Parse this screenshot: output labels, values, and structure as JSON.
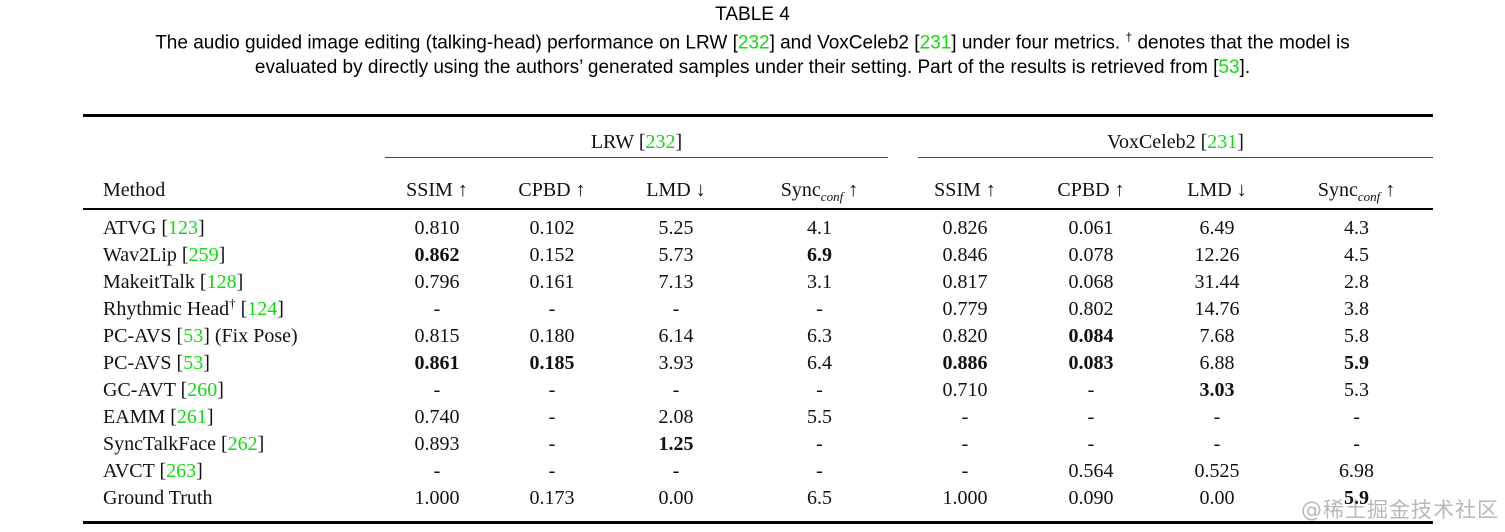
{
  "colors": {
    "green": "#12db12",
    "text": "#111111",
    "rule": "#000000"
  },
  "title": "TABLE 4",
  "caption": {
    "line1": [
      {
        "t": "The audio guided image editing (talking-head) performance on LRW ["
      },
      {
        "t": "232",
        "c": "green"
      },
      {
        "t": "] and VoxCeleb2 ["
      },
      {
        "t": "231",
        "c": "green"
      },
      {
        "t": "] under four metrics. "
      },
      {
        "t": "†",
        "s": "sup"
      },
      {
        "t": " denotes that the model is"
      }
    ],
    "line2": [
      {
        "t": "evaluated by directly using the authors’ generated samples under their setting. Part of the results is retrieved from ["
      },
      {
        "t": "53",
        "c": "green"
      },
      {
        "t": "]."
      }
    ]
  },
  "table": {
    "method_header": "Method",
    "groups": [
      {
        "id": "lrw",
        "label": [
          {
            "t": "LRW ["
          },
          {
            "t": "232",
            "c": "green"
          },
          {
            "t": "]"
          }
        ],
        "columns": [
          {
            "metric": "SSIM",
            "sub": "",
            "arrow": "↑"
          },
          {
            "metric": "CPBD",
            "sub": "",
            "arrow": "↑"
          },
          {
            "metric": "LMD",
            "sub": "",
            "arrow": "↓"
          },
          {
            "metric": "Sync",
            "sub": "conf",
            "arrow": "↑"
          }
        ]
      },
      {
        "id": "voxceleb2",
        "label": [
          {
            "t": "VoxCeleb2 ["
          },
          {
            "t": "231",
            "c": "green"
          },
          {
            "t": "]"
          }
        ],
        "columns": [
          {
            "metric": "SSIM",
            "sub": "",
            "arrow": "↑"
          },
          {
            "metric": "CPBD",
            "sub": "",
            "arrow": "↑"
          },
          {
            "metric": "LMD",
            "sub": "",
            "arrow": "↓"
          },
          {
            "metric": "Sync",
            "sub": "conf",
            "arrow": "↑"
          }
        ]
      }
    ],
    "rows": [
      {
        "method": [
          {
            "t": "ATVG ["
          },
          {
            "t": "123",
            "c": "green"
          },
          {
            "t": "]"
          }
        ],
        "cells": [
          {
            "v": "0.810"
          },
          {
            "v": "0.102"
          },
          {
            "v": "5.25"
          },
          {
            "v": "4.1"
          },
          {
            "v": "0.826"
          },
          {
            "v": "0.061"
          },
          {
            "v": "6.49"
          },
          {
            "v": "4.3"
          }
        ]
      },
      {
        "method": [
          {
            "t": "Wav2Lip ["
          },
          {
            "t": "259",
            "c": "green"
          },
          {
            "t": "]"
          }
        ],
        "cells": [
          {
            "v": "0.862",
            "b": true
          },
          {
            "v": "0.152"
          },
          {
            "v": "5.73"
          },
          {
            "v": "6.9",
            "b": true
          },
          {
            "v": "0.846"
          },
          {
            "v": "0.078"
          },
          {
            "v": "12.26"
          },
          {
            "v": "4.5"
          }
        ]
      },
      {
        "method": [
          {
            "t": "MakeitTalk ["
          },
          {
            "t": "128",
            "c": "green"
          },
          {
            "t": "]"
          }
        ],
        "cells": [
          {
            "v": "0.796"
          },
          {
            "v": "0.161"
          },
          {
            "v": "7.13"
          },
          {
            "v": "3.1"
          },
          {
            "v": "0.817"
          },
          {
            "v": "0.068"
          },
          {
            "v": "31.44"
          },
          {
            "v": "2.8"
          }
        ]
      },
      {
        "method": [
          {
            "t": "Rhythmic Head"
          },
          {
            "t": "†",
            "s": "sup"
          },
          {
            "t": " ["
          },
          {
            "t": "124",
            "c": "green"
          },
          {
            "t": "]"
          }
        ],
        "cells": [
          {
            "v": "-"
          },
          {
            "v": "-"
          },
          {
            "v": "-"
          },
          {
            "v": "-"
          },
          {
            "v": "0.779"
          },
          {
            "v": "0.802"
          },
          {
            "v": "14.76"
          },
          {
            "v": "3.8"
          }
        ]
      },
      {
        "method": [
          {
            "t": "PC-AVS ["
          },
          {
            "t": "53",
            "c": "green"
          },
          {
            "t": "] (Fix Pose)"
          }
        ],
        "cells": [
          {
            "v": "0.815"
          },
          {
            "v": "0.180"
          },
          {
            "v": "6.14"
          },
          {
            "v": "6.3"
          },
          {
            "v": "0.820"
          },
          {
            "v": "0.084",
            "b": true
          },
          {
            "v": "7.68"
          },
          {
            "v": "5.8"
          }
        ]
      },
      {
        "method": [
          {
            "t": "PC-AVS ["
          },
          {
            "t": "53",
            "c": "green"
          },
          {
            "t": "]"
          }
        ],
        "cells": [
          {
            "v": "0.861",
            "b": true
          },
          {
            "v": "0.185",
            "b": true
          },
          {
            "v": "3.93"
          },
          {
            "v": "6.4"
          },
          {
            "v": "0.886",
            "b": true
          },
          {
            "v": "0.083",
            "b": true
          },
          {
            "v": "6.88"
          },
          {
            "v": "5.9",
            "b": true
          }
        ]
      },
      {
        "method": [
          {
            "t": "GC-AVT ["
          },
          {
            "t": "260",
            "c": "green"
          },
          {
            "t": "]"
          }
        ],
        "cells": [
          {
            "v": "-"
          },
          {
            "v": "-"
          },
          {
            "v": "-"
          },
          {
            "v": "-"
          },
          {
            "v": "0.710"
          },
          {
            "v": "-"
          },
          {
            "v": "3.03",
            "b": true
          },
          {
            "v": "5.3"
          }
        ]
      },
      {
        "method": [
          {
            "t": "EAMM ["
          },
          {
            "t": "261",
            "c": "green"
          },
          {
            "t": "]"
          }
        ],
        "cells": [
          {
            "v": "0.740"
          },
          {
            "v": "-"
          },
          {
            "v": "2.08"
          },
          {
            "v": "5.5"
          },
          {
            "v": "-"
          },
          {
            "v": "-"
          },
          {
            "v": "-"
          },
          {
            "v": "-"
          }
        ]
      },
      {
        "method": [
          {
            "t": "SyncTalkFace ["
          },
          {
            "t": "262",
            "c": "green"
          },
          {
            "t": "]"
          }
        ],
        "cells": [
          {
            "v": "0.893"
          },
          {
            "v": "-"
          },
          {
            "v": "1.25",
            "b": true
          },
          {
            "v": "-"
          },
          {
            "v": "-"
          },
          {
            "v": "-"
          },
          {
            "v": "-"
          },
          {
            "v": "-"
          }
        ]
      },
      {
        "method": [
          {
            "t": "AVCT ["
          },
          {
            "t": "263",
            "c": "green"
          },
          {
            "t": "]"
          }
        ],
        "cells": [
          {
            "v": "-"
          },
          {
            "v": "-"
          },
          {
            "v": "-"
          },
          {
            "v": "-"
          },
          {
            "v": "-"
          },
          {
            "v": "0.564"
          },
          {
            "v": "0.525"
          },
          {
            "v": "6.98"
          }
        ]
      },
      {
        "method": [
          {
            "t": "Ground Truth"
          }
        ],
        "cells": [
          {
            "v": "1.000"
          },
          {
            "v": "0.173"
          },
          {
            "v": "0.00"
          },
          {
            "v": "6.5"
          },
          {
            "v": "1.000"
          },
          {
            "v": "0.090"
          },
          {
            "v": "0.00"
          },
          {
            "v": "5.9",
            "b": true
          }
        ]
      }
    ]
  },
  "watermark": "@稀土掘金技术社区"
}
